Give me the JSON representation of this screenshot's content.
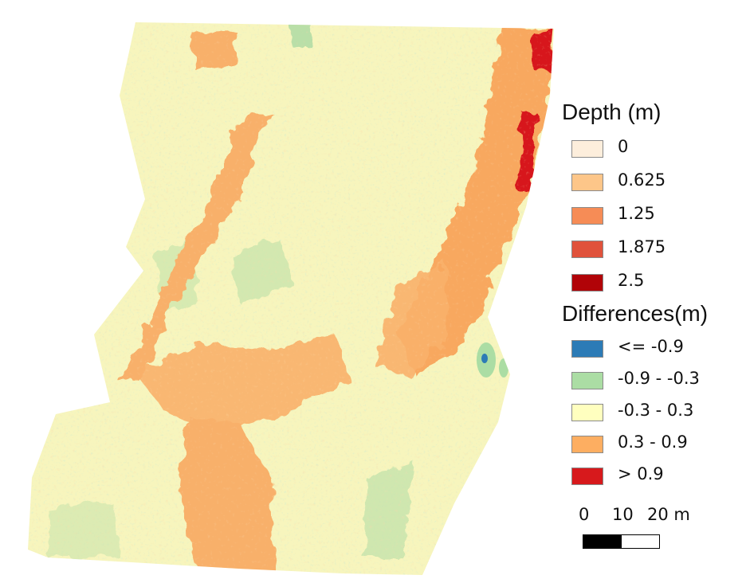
{
  "depth_legend": {
    "title": "Depth (m)",
    "items": [
      {
        "label": "0",
        "color": "#fdeedc"
      },
      {
        "label": "0.625",
        "color": "#fdc689"
      },
      {
        "label": "1.25",
        "color": "#f68c56"
      },
      {
        "label": "1.875",
        "color": "#e0523b"
      },
      {
        "label": "2.5",
        "color": "#b10308"
      }
    ]
  },
  "differences_legend": {
    "title": "Differences(m)",
    "items": [
      {
        "label": "<= -0.9",
        "color": "#2c7bb6"
      },
      {
        "label": "-0.9 - -0.3",
        "color": "#abdda4"
      },
      {
        "label": "-0.3 - 0.3",
        "color": "#ffffbf"
      },
      {
        "label": "0.3 - 0.9",
        "color": "#fdae61"
      },
      {
        "label": "> 0.9",
        "color": "#d7191c"
      }
    ]
  },
  "scale_bar": {
    "labels": [
      "0",
      "10",
      "20 m"
    ],
    "fill_color": "#000000",
    "empty_color": "#ffffff"
  },
  "map": {
    "base_color": "#f7f5bd",
    "orange_color": "#f8b06a",
    "green_color": "#b9dfa8",
    "red_color": "#d7191c",
    "blue_color": "#2c7bb6"
  }
}
